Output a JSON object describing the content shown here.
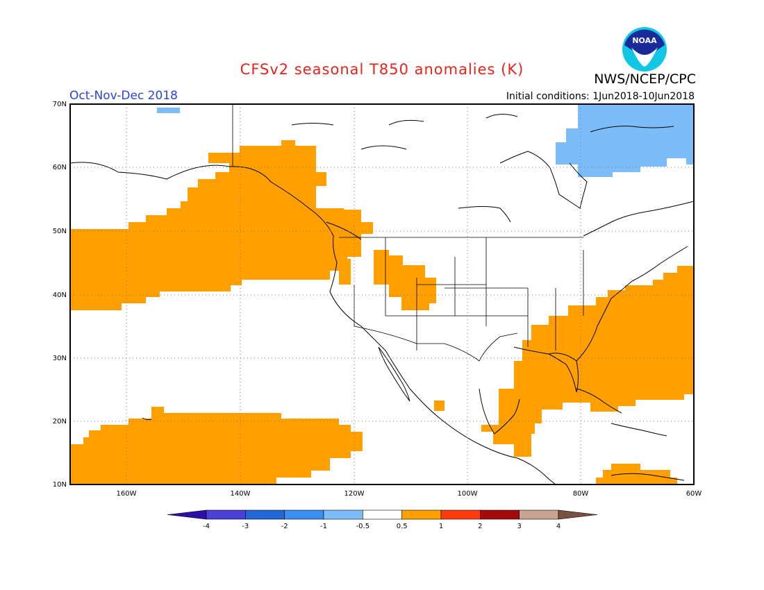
{
  "title": "CFSv2 seasonal T850 anomalies (K)",
  "agency": "NWS/NCEP/CPC",
  "logo_text": "NOAA",
  "period": "Oct-Nov-Dec 2018",
  "initial_conditions": "Initial conditions: 1Jun2018-10Jun2018",
  "lat_labels": [
    "70N",
    "60N",
    "50N",
    "40N",
    "30N",
    "20N",
    "10N"
  ],
  "lon_labels": [
    "160W",
    "140W",
    "120W",
    "100W",
    "80W",
    "60W"
  ],
  "colorbar": {
    "colors": [
      "#2b0fa6",
      "#4a3fd6",
      "#2366d6",
      "#3a8ff0",
      "#7cbcf8",
      "#ffffff",
      "#ff9f00",
      "#ff3b0e",
      "#a40c0c",
      "#c9a291",
      "#7a5140"
    ],
    "labels": [
      "-4",
      "-3",
      "-2",
      "-1",
      "-0.5",
      "0.5",
      "1",
      "2",
      "3",
      "4"
    ]
  },
  "colors": {
    "warm": "#ff9f00",
    "cool": "#7cbcf8"
  }
}
